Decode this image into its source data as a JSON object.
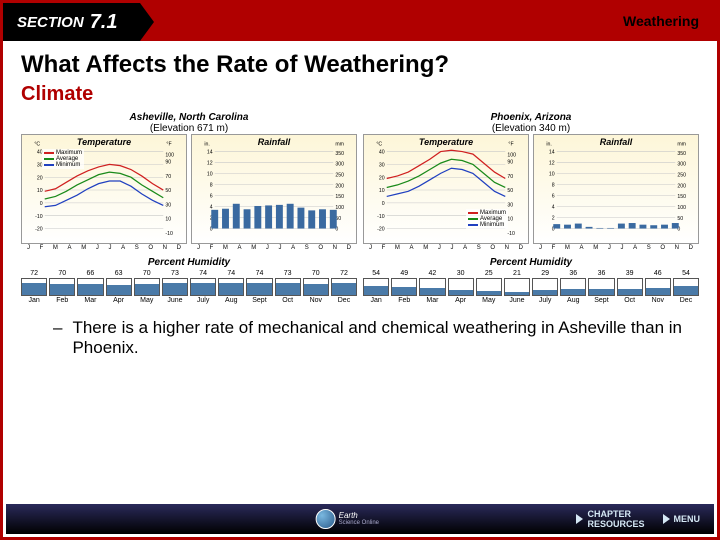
{
  "header": {
    "section_label": "SECTION",
    "section_num": "7.1",
    "topic": "Weathering"
  },
  "title": "What Affects the Rate of Weathering?",
  "subtitle": "Climate",
  "months_short": [
    "J",
    "F",
    "M",
    "A",
    "M",
    "J",
    "J",
    "A",
    "S",
    "O",
    "N",
    "D"
  ],
  "months_abbr": [
    "Jan",
    "Feb",
    "Mar",
    "Apr",
    "May",
    "June",
    "July",
    "Aug",
    "Sept",
    "Oct",
    "Nov",
    "Dec"
  ],
  "legend": {
    "max": "Maximum",
    "avg": "Average",
    "min": "Minimum"
  },
  "colors": {
    "max": "#d02020",
    "avg": "#1a8a1a",
    "min": "#2040c0",
    "bar": "#3a6aa0",
    "grid": "#c8c8c8",
    "chart_bg_top": "#fdf6d8",
    "chart_bg_bot": "#ffffff",
    "accent": "#b00000"
  },
  "cities": [
    {
      "name": "Asheville, North Carolina",
      "elevation": "(Elevation 671 m)",
      "temp": {
        "title": "Temperature",
        "left_unit": "°C",
        "right_unit": "°F",
        "c_range": [
          -20,
          40
        ],
        "c_ticks": [
          -20,
          -10,
          0,
          10,
          20,
          30,
          40
        ],
        "f_range": [
          -10,
          100
        ],
        "f_ticks": [
          -10,
          10,
          30,
          50,
          70,
          90,
          100
        ],
        "max": [
          9,
          11,
          16,
          21,
          25,
          28,
          30,
          29,
          26,
          21,
          15,
          10
        ],
        "avg": [
          3,
          5,
          9,
          14,
          18,
          22,
          24,
          23,
          20,
          14,
          9,
          4
        ],
        "min": [
          -3,
          -2,
          2,
          6,
          11,
          15,
          17,
          17,
          13,
          7,
          2,
          -2
        ],
        "legend_pos": "top-left"
      },
      "rain": {
        "title": "Rainfall",
        "left_unit": "in.",
        "right_unit": "mm",
        "in_range": [
          0,
          14
        ],
        "in_ticks": [
          0,
          2,
          4,
          6,
          8,
          10,
          12,
          14
        ],
        "mm_range": [
          0,
          350
        ],
        "mm_ticks": [
          0,
          50,
          100,
          150,
          200,
          250,
          300,
          350
        ],
        "values_in": [
          3.4,
          3.6,
          4.5,
          3.5,
          4.1,
          4.2,
          4.3,
          4.5,
          3.8,
          3.3,
          3.5,
          3.4
        ]
      },
      "humidity": [
        72,
        70,
        66,
        63,
        70,
        73,
        74,
        74,
        74,
        73,
        70,
        72
      ]
    },
    {
      "name": "Phoenix, Arizona",
      "elevation": "(Elevation 340 m)",
      "temp": {
        "title": "Temperature",
        "left_unit": "°C",
        "right_unit": "°F",
        "c_range": [
          -20,
          40
        ],
        "c_ticks": [
          -20,
          -10,
          0,
          10,
          20,
          30,
          40
        ],
        "f_range": [
          -10,
          100
        ],
        "f_ticks": [
          -10,
          10,
          30,
          50,
          70,
          90,
          100
        ],
        "max": [
          19,
          21,
          24,
          29,
          34,
          40,
          41,
          40,
          38,
          31,
          24,
          19
        ],
        "avg": [
          12,
          14,
          17,
          21,
          26,
          31,
          34,
          33,
          30,
          23,
          16,
          12
        ],
        "min": [
          5,
          7,
          9,
          13,
          18,
          23,
          27,
          26,
          23,
          16,
          9,
          5
        ],
        "legend_pos": "bottom-right"
      },
      "rain": {
        "title": "Rainfall",
        "left_unit": "in.",
        "right_unit": "mm",
        "in_range": [
          0,
          14
        ],
        "in_ticks": [
          0,
          2,
          4,
          6,
          8,
          10,
          12,
          14
        ],
        "mm_range": [
          0,
          350
        ],
        "mm_ticks": [
          0,
          50,
          100,
          150,
          200,
          250,
          300,
          350
        ],
        "values_in": [
          0.8,
          0.7,
          0.9,
          0.3,
          0.1,
          0.1,
          0.9,
          1.0,
          0.7,
          0.6,
          0.7,
          1.0
        ]
      },
      "humidity": [
        54,
        49,
        42,
        30,
        25,
        21,
        29,
        36,
        36,
        39,
        46,
        54
      ]
    }
  ],
  "humid_title": "Percent Humidity",
  "bullet_text": "There is a higher rate of mechanical and chemical weathering in Asheville than in Phoenix.",
  "footer": {
    "logo_top": "Earth",
    "logo_mid": "Science",
    "logo_bot": "Online",
    "chapter": "CHAPTER",
    "resources": "RESOURCES",
    "menu": "MENU"
  }
}
